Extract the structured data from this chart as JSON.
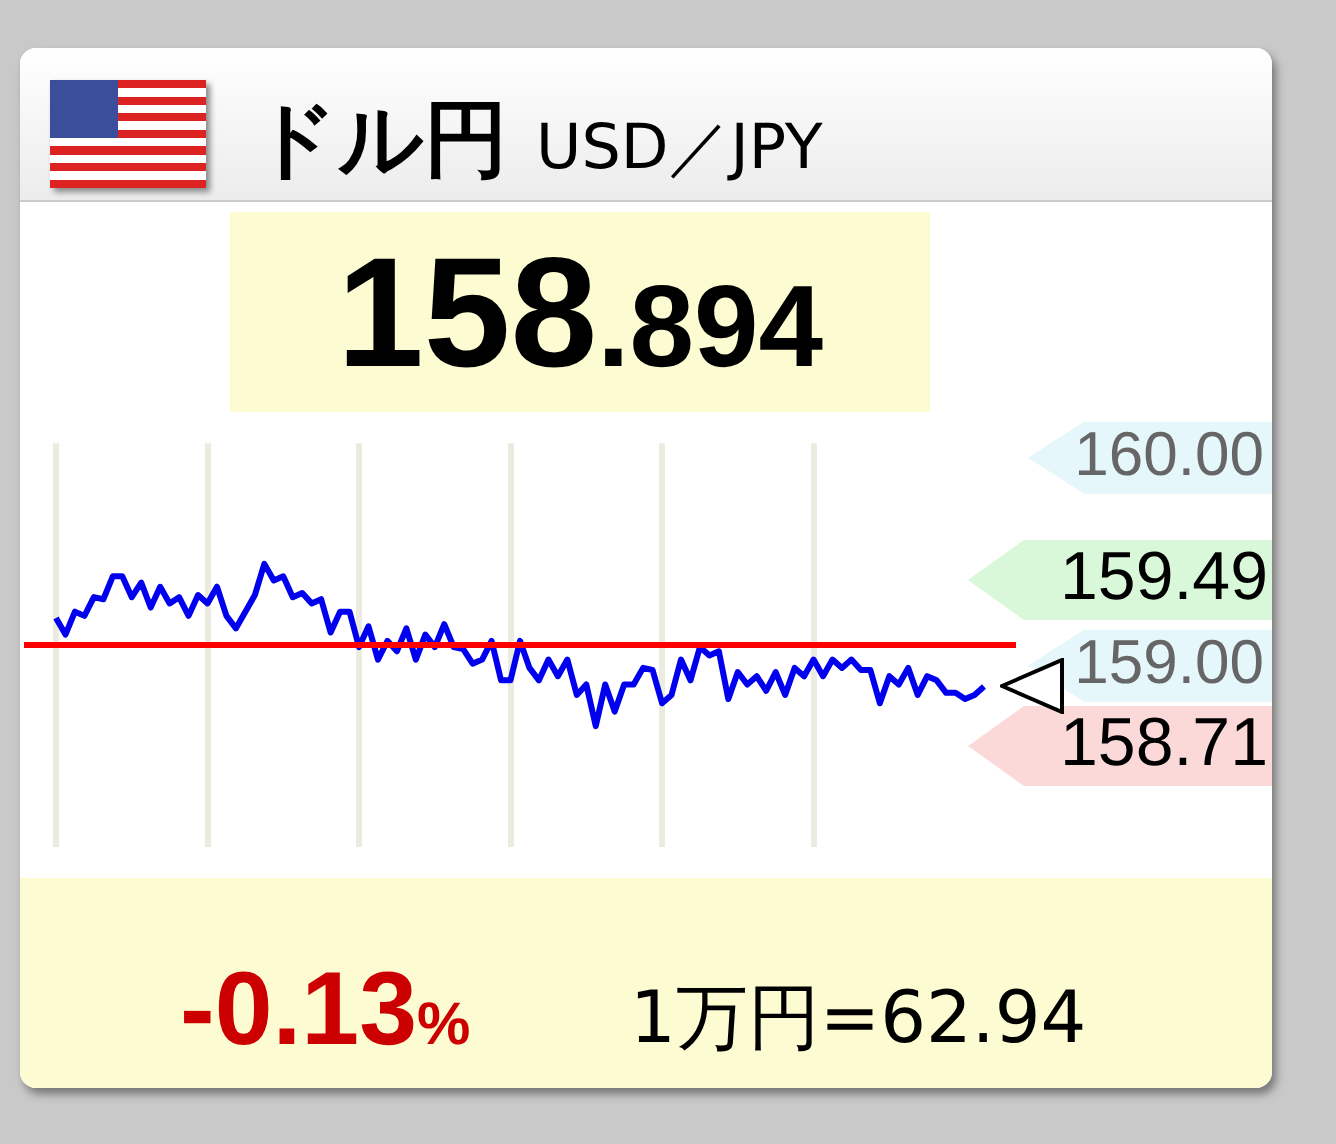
{
  "chart_data": {
    "type": "line",
    "title": "ドル円 USD／JPY",
    "subtitle": "158.894",
    "annotations": [
      "159.49",
      "158.71",
      "-0.13%",
      "1万円=62.94"
    ],
    "categories": [
      null,
      null,
      null,
      null,
      null,
      null,
      null,
      null,
      null,
      null,
      null,
      null,
      null,
      null,
      null,
      null,
      null,
      null,
      null,
      null,
      null,
      null,
      null,
      null,
      null,
      null,
      null,
      null,
      null,
      null,
      null,
      null,
      null,
      null,
      null,
      null,
      null,
      null,
      null,
      null,
      null,
      null,
      null,
      null,
      null,
      null,
      null,
      null,
      null,
      null,
      null,
      null,
      null,
      null,
      null,
      null,
      null,
      null,
      null,
      null,
      null,
      null,
      null,
      null,
      null,
      null,
      null,
      null,
      null,
      null,
      null,
      null,
      null,
      null,
      null,
      null,
      null,
      null,
      null,
      null,
      null,
      null,
      null,
      null,
      null,
      null,
      null,
      null,
      null,
      null,
      null,
      null,
      null,
      null,
      null,
      null,
      null,
      null,
      null
    ],
    "series": [
      {
        "color": "#0000ee",
        "values": [
          159.23,
          159.15,
          159.26,
          159.24,
          159.33,
          159.32,
          159.43,
          159.43,
          159.33,
          159.4,
          159.28,
          159.38,
          159.3,
          159.33,
          159.24,
          159.34,
          159.3,
          159.38,
          159.24,
          159.18,
          159.26,
          159.34,
          159.49,
          159.41,
          159.43,
          159.33,
          159.35,
          159.3,
          159.32,
          159.16,
          159.26,
          159.26,
          159.09,
          159.19,
          159.03,
          159.12,
          159.07,
          159.18,
          159.03,
          159.15,
          159.09,
          159.2,
          159.09,
          159.08,
          159.01,
          159.03,
          159.12,
          158.93,
          158.93,
          159.12,
          158.99,
          158.93,
          159.03,
          158.95,
          159.03,
          158.86,
          158.91,
          158.71,
          158.91,
          158.78,
          158.91,
          158.91,
          158.99,
          158.98,
          158.82,
          158.86,
          159.03,
          158.93,
          159.09,
          159.05,
          159.07,
          158.84,
          158.97,
          158.91,
          158.95,
          158.88,
          158.97,
          158.86,
          158.99,
          158.95,
          159.03,
          158.95,
          159.03,
          158.99,
          159.03,
          158.98,
          158.98,
          158.82,
          158.95,
          158.91,
          158.99,
          158.86,
          158.95,
          158.93,
          158.87,
          158.87,
          158.84,
          158.86,
          158.9
        ]
      }
    ],
    "ylim": [
      158.13,
      160.07
    ],
    "yticks": [
      {
        "value": 160,
        "label": "160.00"
      },
      {
        "value": 159,
        "label": "159.00"
      }
    ],
    "ref_lines": [
      {
        "axis": "y",
        "value": 159.1,
        "color": "#ff0000"
      }
    ],
    "grid": "x",
    "tick_labels": "y",
    "legend": false
  }
}
